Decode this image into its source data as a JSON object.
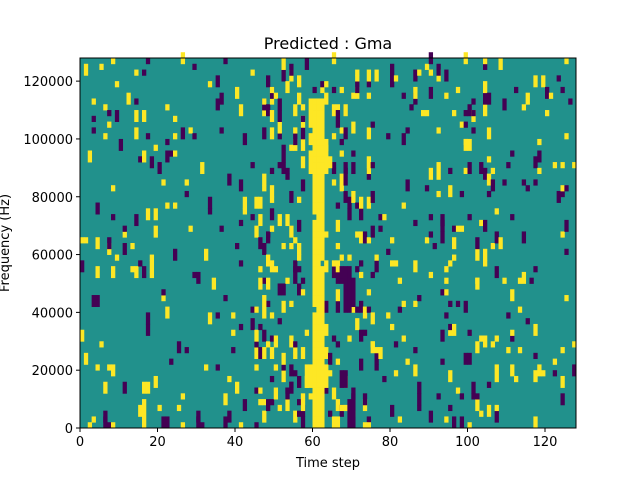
{
  "chart_data": {
    "type": "heatmap",
    "title": "Predicted : Gma",
    "xlabel": "Time step",
    "ylabel": "Frequency (Hz)",
    "xlim": [
      0,
      128
    ],
    "ylim": [
      0,
      128000
    ],
    "xticks": [
      0,
      20,
      40,
      60,
      80,
      100,
      120
    ],
    "yticks": [
      0,
      20000,
      40000,
      60000,
      80000,
      100000,
      120000
    ],
    "grid": false,
    "colors": {
      "background": "#21918c",
      "low": "#440154",
      "high": "#fde725"
    },
    "time_steps": 128,
    "frequency_bins": 64,
    "bin_hz": 2000,
    "dominant_band": {
      "value": "high",
      "time_steps": [
        60,
        61,
        62
      ],
      "freq_range_hz": [
        0,
        114000
      ]
    },
    "cells": [
      {
        "t": 2,
        "f": [
          0,
          2000
        ],
        "v": "high"
      },
      {
        "t": 6,
        "f": [
          0,
          6000
        ],
        "v": "low"
      },
      {
        "t": 7,
        "f": [
          0,
          2000
        ],
        "v": "low"
      },
      {
        "t": 8,
        "f": [
          0,
          2000
        ],
        "v": "high"
      },
      {
        "t": 15,
        "f": [
          4000,
          8000
        ],
        "v": "high"
      },
      {
        "t": 16,
        "f": [
          0,
          10000
        ],
        "v": "high"
      },
      {
        "t": 17,
        "f": [
          12000,
          16000
        ],
        "v": "high"
      },
      {
        "t": 21,
        "f": [
          0,
          4000
        ],
        "v": "low"
      },
      {
        "t": 22,
        "f": [
          0,
          4000
        ],
        "v": "low"
      },
      {
        "t": 26,
        "f": [
          0,
          2000
        ],
        "v": "high"
      },
      {
        "t": 30,
        "f": [
          0,
          4000
        ],
        "v": "low"
      },
      {
        "t": 31,
        "f": [
          0,
          2000
        ],
        "v": "low"
      },
      {
        "t": 3,
        "f": [
          42000,
          46000
        ],
        "v": "low"
      },
      {
        "t": 4,
        "f": [
          42000,
          46000
        ],
        "v": "low"
      },
      {
        "t": 46,
        "f": [
          48000,
          52000
        ],
        "v": "high"
      },
      {
        "t": 47,
        "f": [
          42000,
          46000
        ],
        "v": "high"
      },
      {
        "t": 58,
        "f": [
          14000,
          22000
        ],
        "v": "high"
      },
      {
        "t": 59,
        "f": [
          14000,
          22000
        ],
        "v": "high"
      },
      {
        "t": 63,
        "f": [
          14000,
          22000
        ],
        "v": "high"
      },
      {
        "t": 59,
        "f": [
          88000,
          94000
        ],
        "v": "high"
      },
      {
        "t": 63,
        "f": [
          88000,
          94000
        ],
        "v": "high"
      },
      {
        "t": 63,
        "f": [
          90000,
          100000
        ],
        "v": "high"
      },
      {
        "t": 64,
        "f": [
          90000,
          94000
        ],
        "v": "high"
      },
      {
        "t": 59,
        "f": [
          104000,
          114000
        ],
        "v": "high"
      },
      {
        "t": 65,
        "f": [
          0,
          4000
        ],
        "v": "high"
      },
      {
        "t": 66,
        "f": [
          0,
          4000
        ],
        "v": "high"
      },
      {
        "t": 69,
        "f": [
          0,
          10000
        ],
        "v": "low"
      },
      {
        "t": 70,
        "f": [
          0,
          14000
        ],
        "v": "low"
      },
      {
        "t": 73,
        "f": [
          0,
          2000
        ],
        "v": "high"
      },
      {
        "t": 74,
        "f": [
          0,
          2000
        ],
        "v": "high"
      },
      {
        "t": 68,
        "f": [
          40000,
          56000
        ],
        "v": "low"
      },
      {
        "t": 69,
        "f": [
          40000,
          56000
        ],
        "v": "low"
      },
      {
        "t": 70,
        "f": [
          42000,
          52000
        ],
        "v": "low"
      },
      {
        "t": 67,
        "f": [
          14000,
          20000
        ],
        "v": "low"
      },
      {
        "t": 68,
        "f": [
          14000,
          20000
        ],
        "v": "low"
      },
      {
        "t": 66,
        "f": [
          104000,
          110000
        ],
        "v": "low"
      },
      {
        "t": 68,
        "f": [
          84000,
          90000
        ],
        "v": "low"
      },
      {
        "t": 70,
        "f": [
          88000,
          92000
        ],
        "v": "low"
      },
      {
        "t": 100,
        "f": [
          0,
          2000
        ],
        "v": "high"
      },
      {
        "t": 98,
        "f": [
          0,
          4000
        ],
        "v": "low"
      },
      {
        "t": 99,
        "f": [
          22000,
          26000
        ],
        "v": "low"
      },
      {
        "t": 100,
        "f": [
          22000,
          26000
        ],
        "v": "low"
      },
      {
        "t": 107,
        "f": [
          16000,
          22000
        ],
        "v": "high"
      }
    ],
    "scatter_seed": 7
  }
}
